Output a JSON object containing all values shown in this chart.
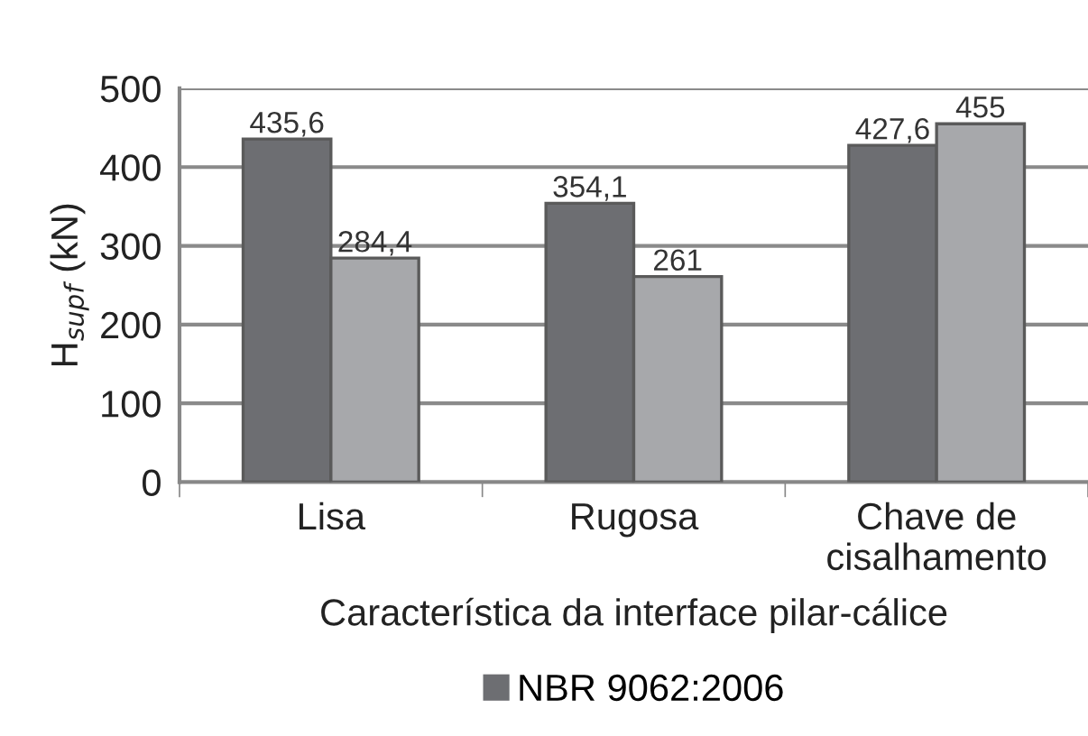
{
  "chart_data": {
    "type": "bar",
    "xlabel": "Característica da interface pilar-cálice",
    "ylabel": "H$_{supf}$ (kN)",
    "categories": [
      "Lisa",
      "Rugosa",
      "Chave de\ncisalhamento"
    ],
    "series": [
      {
        "name": "NBR 9062:2006",
        "color": "#6d6e72",
        "values": [
          435.6,
          354.1,
          427.6
        ],
        "value_labels": [
          "435,6",
          "354,1",
          "427,6"
        ]
      },
      {
        "color": "#a7a8ab",
        "values": [
          284.4,
          261,
          455
        ],
        "value_labels": [
          "284,4",
          "261",
          "455"
        ]
      }
    ],
    "ylim": [
      0,
      500
    ],
    "yticks": [
      0,
      100,
      200,
      300,
      400,
      500
    ],
    "grid": "y",
    "legend": "bottom"
  }
}
